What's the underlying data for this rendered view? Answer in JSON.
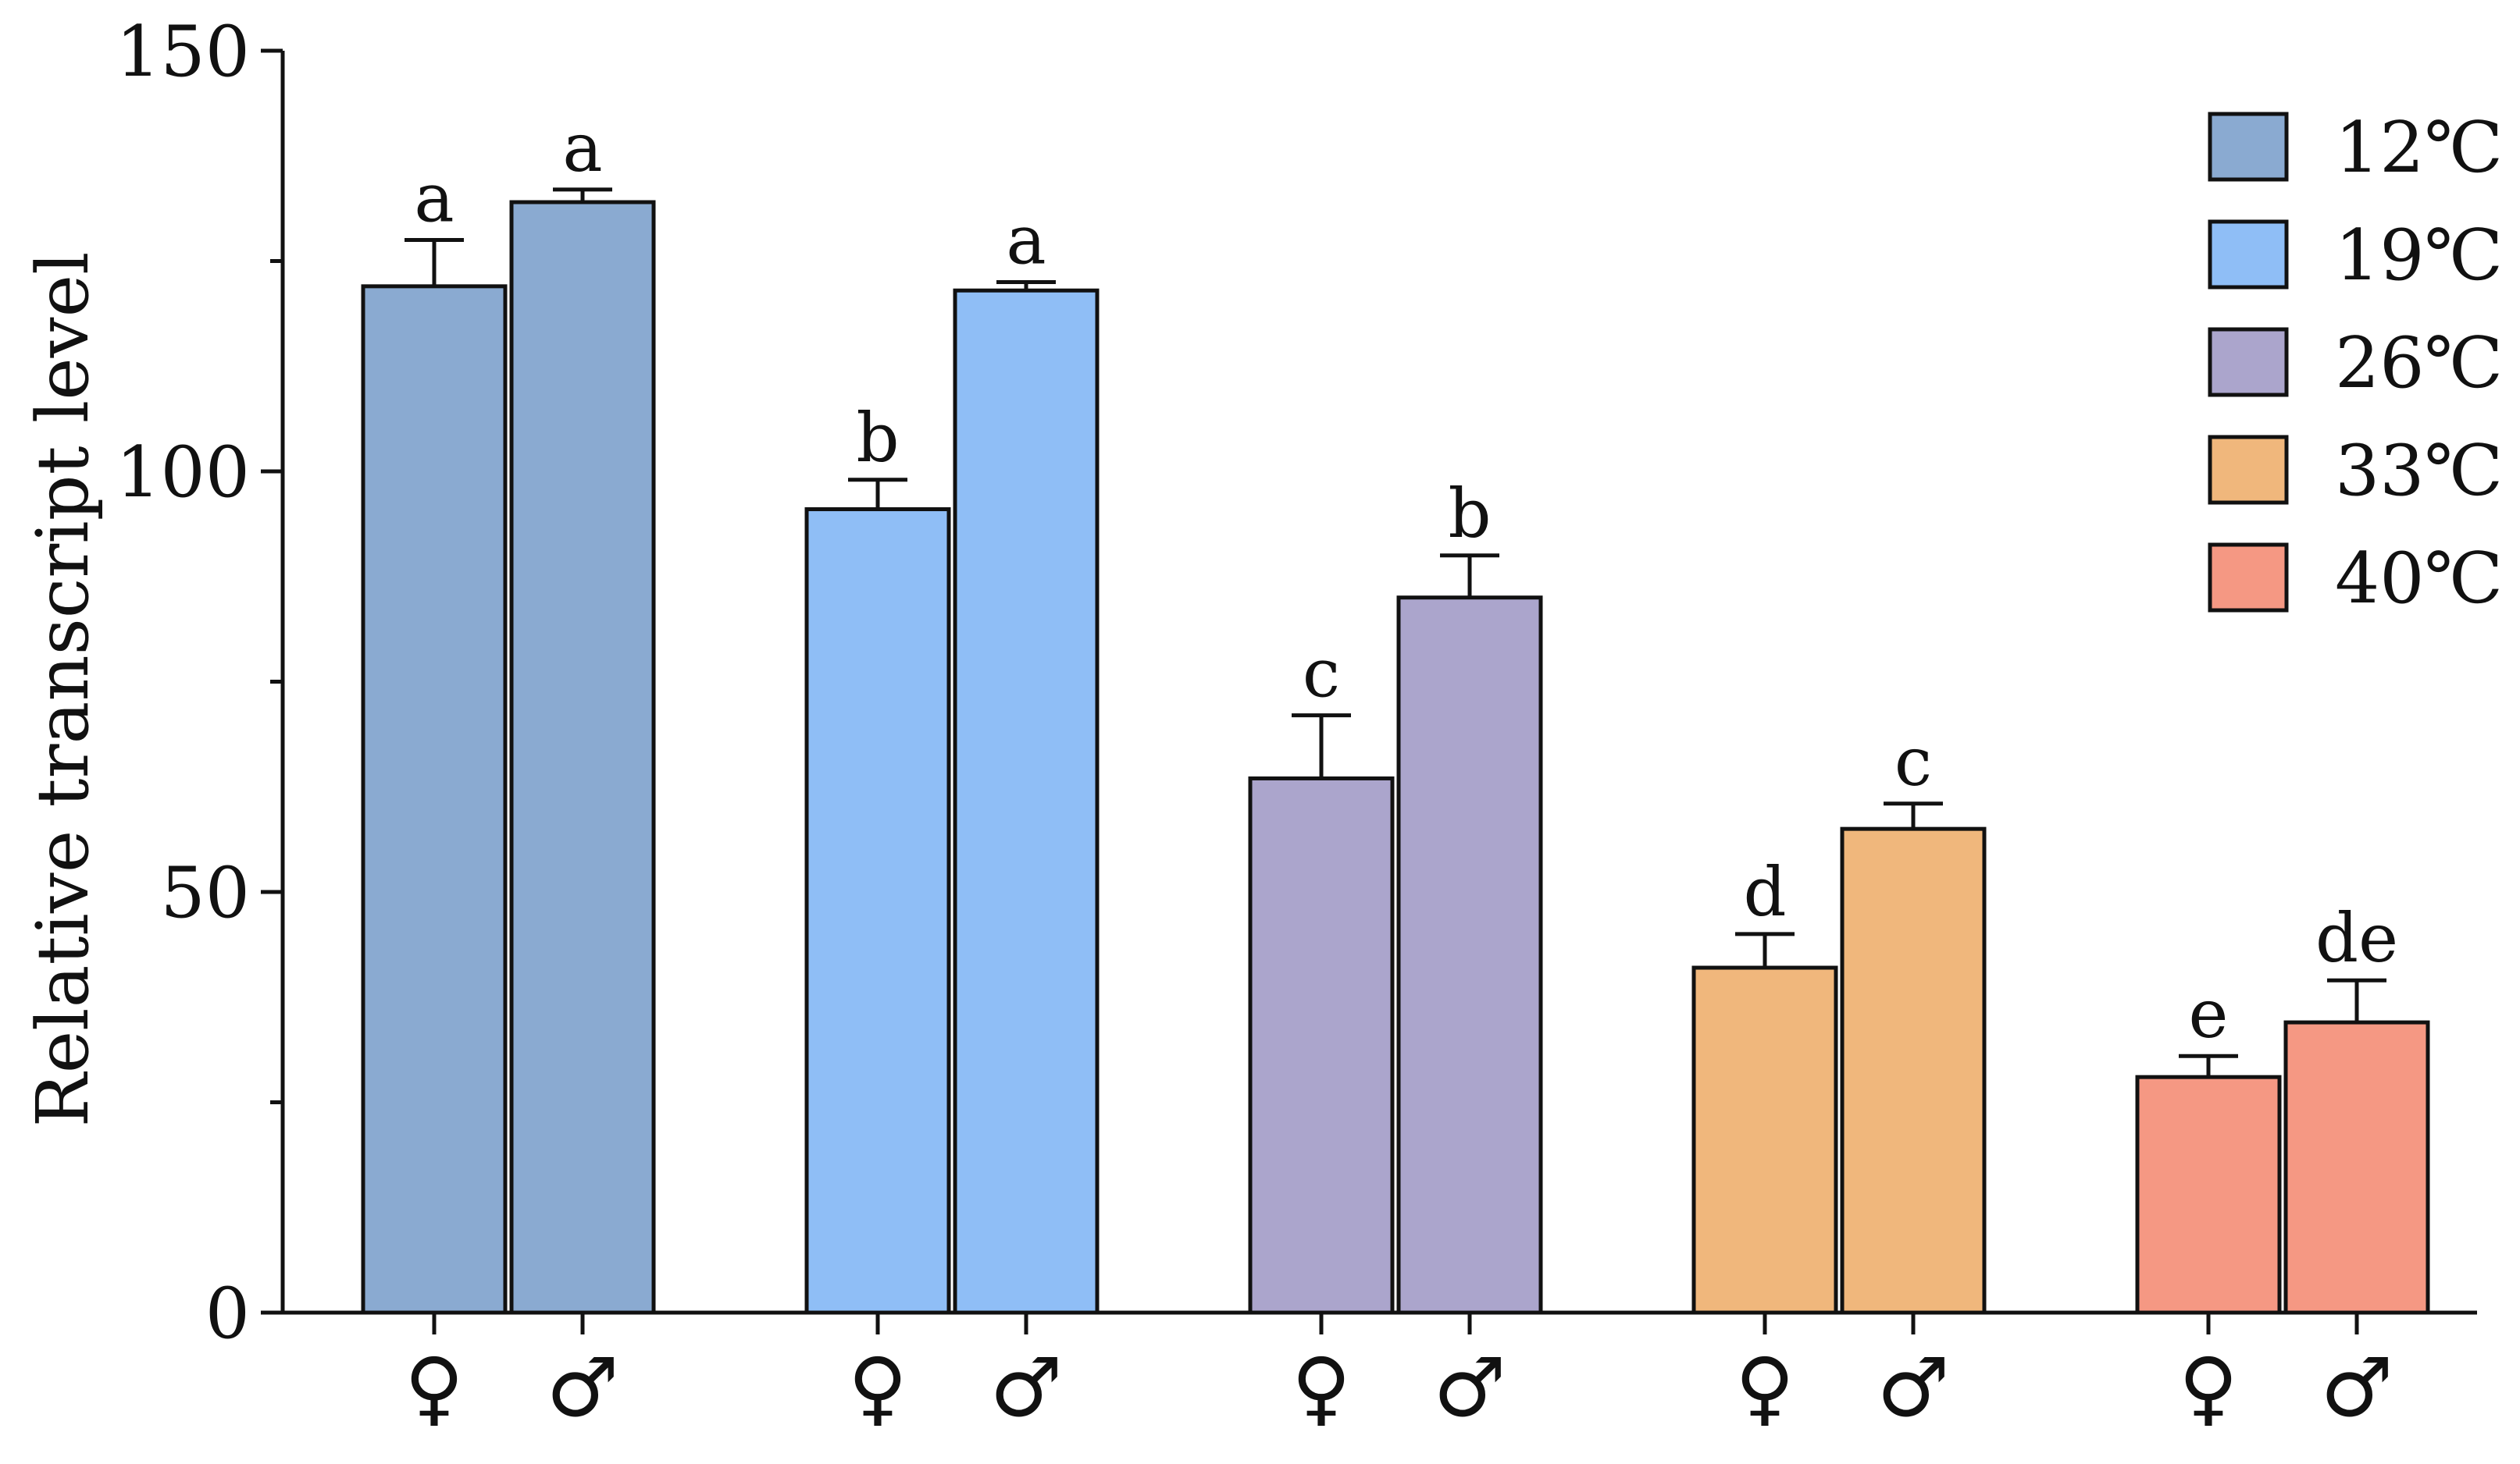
{
  "chart_data": {
    "type": "bar",
    "title": "",
    "xlabel": "",
    "ylabel": "Relative transcript level",
    "ylim": [
      0,
      150
    ],
    "yticks": [
      0,
      50,
      100,
      150
    ],
    "y_minor_ticks": [
      25,
      75,
      125
    ],
    "grid": false,
    "legend_position": "top-right",
    "groups": [
      {
        "name": "12℃",
        "color": "#8aaad1",
        "bars": [
          {
            "sex": "♀",
            "value": 122,
            "error": 5.5,
            "letter": "a"
          },
          {
            "sex": "♂",
            "value": 132,
            "error": 1.5,
            "letter": "a"
          }
        ]
      },
      {
        "name": "19℃",
        "color": "#8fbef6",
        "bars": [
          {
            "sex": "♀",
            "value": 95.5,
            "error": 3.5,
            "letter": "b"
          },
          {
            "sex": "♂",
            "value": 121.5,
            "error": 1,
            "letter": "a"
          }
        ]
      },
      {
        "name": "26℃",
        "color": "#aba5cc",
        "bars": [
          {
            "sex": "♀",
            "value": 63.5,
            "error": 7.5,
            "letter": "c"
          },
          {
            "sex": "♂",
            "value": 85,
            "error": 5,
            "letter": "b"
          }
        ]
      },
      {
        "name": "33℃",
        "color": "#f0b77c",
        "bars": [
          {
            "sex": "♀",
            "value": 41,
            "error": 4,
            "letter": "d"
          },
          {
            "sex": "♂",
            "value": 57.5,
            "error": 3,
            "letter": "c"
          }
        ]
      },
      {
        "name": "40℃",
        "color": "#f59883",
        "bars": [
          {
            "sex": "♀",
            "value": 28,
            "error": 2.5,
            "letter": "e"
          },
          {
            "sex": "♂",
            "value": 34.5,
            "error": 5,
            "letter": "de"
          }
        ]
      }
    ]
  }
}
